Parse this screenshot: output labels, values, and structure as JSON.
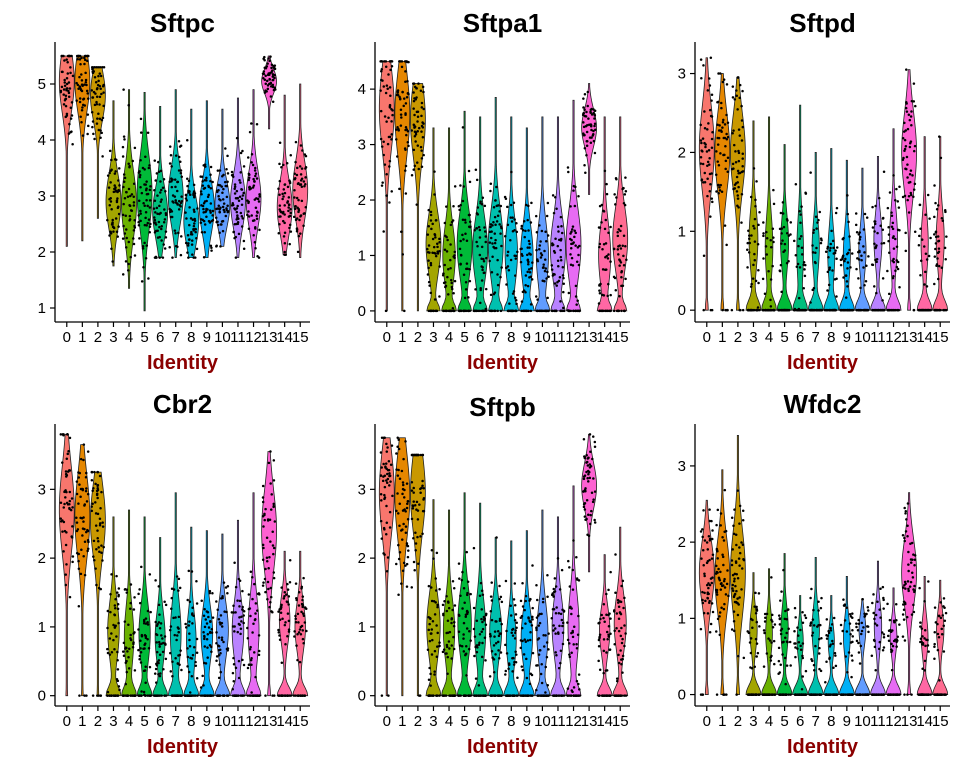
{
  "chart_data": [
    {
      "type": "violin",
      "title": "Sftpc",
      "xlabel": "Identity",
      "categories": [
        "0",
        "1",
        "2",
        "3",
        "4",
        "5",
        "6",
        "7",
        "8",
        "9",
        "10",
        "11",
        "12",
        "13",
        "14",
        "15"
      ],
      "yticks": [
        1,
        2,
        3,
        4,
        5
      ],
      "ylim": [
        0.75,
        5.75
      ],
      "series": [
        {
          "category": "0",
          "median": 5.05,
          "min": 2.1,
          "max": 5.5,
          "zero_frac": 0
        },
        {
          "category": "1",
          "median": 5.05,
          "min": 2.2,
          "max": 5.5,
          "zero_frac": 0
        },
        {
          "category": "2",
          "median": 4.8,
          "min": 2.6,
          "max": 5.3,
          "zero_frac": 0
        },
        {
          "category": "3",
          "median": 2.9,
          "min": 1.75,
          "max": 4.7,
          "zero_frac": 0
        },
        {
          "category": "4",
          "median": 2.85,
          "min": 1.35,
          "max": 4.9,
          "zero_frac": 0
        },
        {
          "category": "5",
          "median": 3.05,
          "min": 0.95,
          "max": 4.85,
          "zero_frac": 0
        },
        {
          "category": "6",
          "median": 2.7,
          "min": 1.9,
          "max": 4.6,
          "zero_frac": 0
        },
        {
          "category": "7",
          "median": 3.0,
          "min": 1.9,
          "max": 4.9,
          "zero_frac": 0
        },
        {
          "category": "8",
          "median": 2.55,
          "min": 1.9,
          "max": 4.55,
          "zero_frac": 0
        },
        {
          "category": "9",
          "median": 2.8,
          "min": 1.9,
          "max": 4.7,
          "zero_frac": 0
        },
        {
          "category": "10",
          "median": 2.85,
          "min": 2.1,
          "max": 4.55,
          "zero_frac": 0
        },
        {
          "category": "11",
          "median": 2.9,
          "min": 1.9,
          "max": 4.75,
          "zero_frac": 0
        },
        {
          "category": "12",
          "median": 2.95,
          "min": 1.9,
          "max": 4.9,
          "zero_frac": 0
        },
        {
          "category": "13",
          "median": 5.05,
          "min": 4.2,
          "max": 5.5,
          "zero_frac": 0
        },
        {
          "category": "14",
          "median": 2.8,
          "min": 1.95,
          "max": 4.8,
          "zero_frac": 0
        },
        {
          "category": "15",
          "median": 3.1,
          "min": 1.9,
          "max": 5.0,
          "zero_frac": 0
        }
      ]
    },
    {
      "type": "violin",
      "title": "Sftpa1",
      "xlabel": "Identity",
      "categories": [
        "0",
        "1",
        "2",
        "3",
        "4",
        "5",
        "6",
        "7",
        "8",
        "9",
        "10",
        "11",
        "12",
        "13",
        "14",
        "15"
      ],
      "yticks": [
        0,
        1,
        2,
        3,
        4
      ],
      "ylim": [
        -0.2,
        4.85
      ],
      "series": [
        {
          "category": "0",
          "median": 3.65,
          "min": 0,
          "max": 4.5,
          "zero_frac": 0.01
        },
        {
          "category": "1",
          "median": 3.55,
          "min": 0,
          "max": 4.5,
          "zero_frac": 0.01
        },
        {
          "category": "2",
          "median": 3.45,
          "min": 0,
          "max": 4.1,
          "zero_frac": 0.01
        },
        {
          "category": "3",
          "median": 1.2,
          "min": 0,
          "max": 3.3,
          "zero_frac": 0.2
        },
        {
          "category": "4",
          "median": 1.0,
          "min": 0,
          "max": 3.3,
          "zero_frac": 0.25
        },
        {
          "category": "5",
          "median": 1.2,
          "min": 0,
          "max": 3.6,
          "zero_frac": 0.2
        },
        {
          "category": "6",
          "median": 1.1,
          "min": 0,
          "max": 3.5,
          "zero_frac": 0.2
        },
        {
          "category": "7",
          "median": 1.2,
          "min": 0,
          "max": 3.85,
          "zero_frac": 0.2
        },
        {
          "category": "8",
          "median": 1.05,
          "min": 0,
          "max": 3.5,
          "zero_frac": 0.25
        },
        {
          "category": "9",
          "median": 1.0,
          "min": 0,
          "max": 3.3,
          "zero_frac": 0.25
        },
        {
          "category": "10",
          "median": 1.0,
          "min": 0,
          "max": 3.5,
          "zero_frac": 0.25
        },
        {
          "category": "11",
          "median": 1.1,
          "min": 0,
          "max": 3.5,
          "zero_frac": 0.2
        },
        {
          "category": "12",
          "median": 1.2,
          "min": 0,
          "max": 3.8,
          "zero_frac": 0.2
        },
        {
          "category": "13",
          "median": 3.3,
          "min": 2.1,
          "max": 4.1,
          "zero_frac": 0
        },
        {
          "category": "14",
          "median": 1.0,
          "min": 0,
          "max": 3.5,
          "zero_frac": 0.25
        },
        {
          "category": "15",
          "median": 1.3,
          "min": 0,
          "max": 3.5,
          "zero_frac": 0.2
        }
      ]
    },
    {
      "type": "violin",
      "title": "Sftpd",
      "xlabel": "Identity",
      "categories": [
        "0",
        "1",
        "2",
        "3",
        "4",
        "5",
        "6",
        "7",
        "8",
        "9",
        "10",
        "11",
        "12",
        "13",
        "14",
        "15"
      ],
      "yticks": [
        0,
        1,
        2,
        3
      ],
      "ylim": [
        -0.15,
        3.4
      ],
      "series": [
        {
          "category": "0",
          "median": 2.05,
          "min": 0,
          "max": 3.2,
          "zero_frac": 0.05
        },
        {
          "category": "1",
          "median": 2.0,
          "min": 0,
          "max": 3.0,
          "zero_frac": 0.05
        },
        {
          "category": "2",
          "median": 2.0,
          "min": 0,
          "max": 2.95,
          "zero_frac": 0.05
        },
        {
          "category": "3",
          "median": 0.9,
          "min": 0,
          "max": 2.4,
          "zero_frac": 0.4
        },
        {
          "category": "4",
          "median": 0.8,
          "min": 0,
          "max": 2.45,
          "zero_frac": 0.45
        },
        {
          "category": "5",
          "median": 0.85,
          "min": 0,
          "max": 2.1,
          "zero_frac": 0.45
        },
        {
          "category": "6",
          "median": 0.75,
          "min": 0,
          "max": 2.6,
          "zero_frac": 0.5
        },
        {
          "category": "7",
          "median": 0.8,
          "min": 0,
          "max": 2.0,
          "zero_frac": 0.5
        },
        {
          "category": "8",
          "median": 0.7,
          "min": 0,
          "max": 2.05,
          "zero_frac": 0.5
        },
        {
          "category": "9",
          "median": 0.7,
          "min": 0,
          "max": 1.9,
          "zero_frac": 0.5
        },
        {
          "category": "10",
          "median": 0.75,
          "min": 0,
          "max": 1.8,
          "zero_frac": 0.5
        },
        {
          "category": "11",
          "median": 0.9,
          "min": 0,
          "max": 1.95,
          "zero_frac": 0.45
        },
        {
          "category": "12",
          "median": 0.9,
          "min": 0,
          "max": 2.3,
          "zero_frac": 0.45
        },
        {
          "category": "13",
          "median": 2.0,
          "min": 0,
          "max": 3.05,
          "zero_frac": 0.05
        },
        {
          "category": "14",
          "median": 0.85,
          "min": 0,
          "max": 2.2,
          "zero_frac": 0.5
        },
        {
          "category": "15",
          "median": 0.9,
          "min": 0,
          "max": 2.2,
          "zero_frac": 0.45
        }
      ]
    },
    {
      "type": "violin",
      "title": "Cbr2",
      "xlabel": "Identity",
      "categories": [
        "0",
        "1",
        "2",
        "3",
        "4",
        "5",
        "6",
        "7",
        "8",
        "9",
        "10",
        "11",
        "12",
        "13",
        "14",
        "15"
      ],
      "yticks": [
        0,
        1,
        2,
        3
      ],
      "ylim": [
        -0.15,
        3.95
      ],
      "series": [
        {
          "category": "0",
          "median": 2.7,
          "min": 0,
          "max": 3.8,
          "zero_frac": 0.03
        },
        {
          "category": "1",
          "median": 2.6,
          "min": 0,
          "max": 3.65,
          "zero_frac": 0.03
        },
        {
          "category": "2",
          "median": 2.55,
          "min": 0,
          "max": 3.25,
          "zero_frac": 0.03
        },
        {
          "category": "3",
          "median": 0.95,
          "min": 0,
          "max": 2.6,
          "zero_frac": 0.3
        },
        {
          "category": "4",
          "median": 0.85,
          "min": 0,
          "max": 2.7,
          "zero_frac": 0.35
        },
        {
          "category": "5",
          "median": 0.9,
          "min": 0,
          "max": 2.6,
          "zero_frac": 0.3
        },
        {
          "category": "6",
          "median": 0.85,
          "min": 0,
          "max": 2.3,
          "zero_frac": 0.35
        },
        {
          "category": "7",
          "median": 0.9,
          "min": 0,
          "max": 2.95,
          "zero_frac": 0.3
        },
        {
          "category": "8",
          "median": 0.8,
          "min": 0,
          "max": 2.45,
          "zero_frac": 0.35
        },
        {
          "category": "9",
          "median": 0.9,
          "min": 0,
          "max": 2.4,
          "zero_frac": 0.3
        },
        {
          "category": "10",
          "median": 0.95,
          "min": 0,
          "max": 2.35,
          "zero_frac": 0.3
        },
        {
          "category": "11",
          "median": 0.95,
          "min": 0,
          "max": 2.55,
          "zero_frac": 0.3
        },
        {
          "category": "12",
          "median": 0.95,
          "min": 0,
          "max": 2.95,
          "zero_frac": 0.3
        },
        {
          "category": "13",
          "median": 2.4,
          "min": 0,
          "max": 3.55,
          "zero_frac": 0.05
        },
        {
          "category": "14",
          "median": 1.1,
          "min": 0,
          "max": 2.1,
          "zero_frac": 0.35
        },
        {
          "category": "15",
          "median": 1.0,
          "min": 0,
          "max": 2.1,
          "zero_frac": 0.35
        }
      ]
    },
    {
      "type": "violin",
      "title": "Sftpb",
      "xlabel": "Identity",
      "categories": [
        "0",
        "1",
        "2",
        "3",
        "4",
        "5",
        "6",
        "7",
        "8",
        "9",
        "10",
        "11",
        "12",
        "13",
        "14",
        "15"
      ],
      "yticks": [
        0,
        1,
        2,
        3
      ],
      "ylim": [
        -0.15,
        3.95
      ],
      "series": [
        {
          "category": "0",
          "median": 2.95,
          "min": 0,
          "max": 3.75,
          "zero_frac": 0.02
        },
        {
          "category": "1",
          "median": 2.9,
          "min": 0,
          "max": 3.75,
          "zero_frac": 0.02
        },
        {
          "category": "2",
          "median": 2.95,
          "min": 0,
          "max": 3.5,
          "zero_frac": 0.02
        },
        {
          "category": "3",
          "median": 1.0,
          "min": 0,
          "max": 2.85,
          "zero_frac": 0.25
        },
        {
          "category": "4",
          "median": 0.95,
          "min": 0,
          "max": 2.7,
          "zero_frac": 0.3
        },
        {
          "category": "5",
          "median": 1.05,
          "min": 0,
          "max": 2.95,
          "zero_frac": 0.25
        },
        {
          "category": "6",
          "median": 0.95,
          "min": 0,
          "max": 2.8,
          "zero_frac": 0.3
        },
        {
          "category": "7",
          "median": 0.95,
          "min": 0,
          "max": 2.3,
          "zero_frac": 0.3
        },
        {
          "category": "8",
          "median": 0.8,
          "min": 0,
          "max": 2.25,
          "zero_frac": 0.35
        },
        {
          "category": "9",
          "median": 0.85,
          "min": 0,
          "max": 2.4,
          "zero_frac": 0.3
        },
        {
          "category": "10",
          "median": 0.9,
          "min": 0,
          "max": 2.7,
          "zero_frac": 0.3
        },
        {
          "category": "11",
          "median": 1.0,
          "min": 0,
          "max": 2.6,
          "zero_frac": 0.3
        },
        {
          "category": "12",
          "median": 1.0,
          "min": 0,
          "max": 3.05,
          "zero_frac": 0.3
        },
        {
          "category": "13",
          "median": 3.05,
          "min": 1.8,
          "max": 3.8,
          "zero_frac": 0
        },
        {
          "category": "14",
          "median": 0.95,
          "min": 0,
          "max": 2.05,
          "zero_frac": 0.35
        },
        {
          "category": "15",
          "median": 1.05,
          "min": 0,
          "max": 2.45,
          "zero_frac": 0.3
        }
      ]
    },
    {
      "type": "violin",
      "title": "Wfdc2",
      "xlabel": "Identity",
      "categories": [
        "0",
        "1",
        "2",
        "3",
        "4",
        "5",
        "6",
        "7",
        "8",
        "9",
        "10",
        "11",
        "12",
        "13",
        "14",
        "15"
      ],
      "yticks": [
        0,
        1,
        2,
        3
      ],
      "ylim": [
        -0.15,
        3.55
      ],
      "series": [
        {
          "category": "0",
          "median": 1.6,
          "min": 0,
          "max": 2.55,
          "zero_frac": 0.05
        },
        {
          "category": "1",
          "median": 1.55,
          "min": 0,
          "max": 2.95,
          "zero_frac": 0.05
        },
        {
          "category": "2",
          "median": 1.6,
          "min": 0,
          "max": 3.4,
          "zero_frac": 0.05
        },
        {
          "category": "3",
          "median": 0.85,
          "min": 0,
          "max": 1.6,
          "zero_frac": 0.5
        },
        {
          "category": "4",
          "median": 0.8,
          "min": 0,
          "max": 1.65,
          "zero_frac": 0.55
        },
        {
          "category": "5",
          "median": 0.85,
          "min": 0,
          "max": 1.85,
          "zero_frac": 0.5
        },
        {
          "category": "6",
          "median": 0.7,
          "min": 0,
          "max": 1.3,
          "zero_frac": 0.6
        },
        {
          "category": "7",
          "median": 0.85,
          "min": 0,
          "max": 1.8,
          "zero_frac": 0.5
        },
        {
          "category": "8",
          "median": 0.7,
          "min": 0,
          "max": 1.3,
          "zero_frac": 0.6
        },
        {
          "category": "9",
          "median": 0.75,
          "min": 0,
          "max": 1.55,
          "zero_frac": 0.55
        },
        {
          "category": "10",
          "median": 0.85,
          "min": 0,
          "max": 1.25,
          "zero_frac": 0.55
        },
        {
          "category": "11",
          "median": 0.9,
          "min": 0,
          "max": 1.75,
          "zero_frac": 0.5
        },
        {
          "category": "12",
          "median": 0.75,
          "min": 0,
          "max": 1.4,
          "zero_frac": 0.55
        },
        {
          "category": "13",
          "median": 1.6,
          "min": 0,
          "max": 2.65,
          "zero_frac": 0.05
        },
        {
          "category": "14",
          "median": 0.75,
          "min": 0,
          "max": 1.55,
          "zero_frac": 0.55
        },
        {
          "category": "15",
          "median": 0.85,
          "min": 0,
          "max": 1.5,
          "zero_frac": 0.5
        }
      ]
    }
  ],
  "palette": [
    "#F8766D",
    "#E58700",
    "#C99800",
    "#A3A500",
    "#6BB100",
    "#00BA38",
    "#00BF7D",
    "#00C0AF",
    "#00BCD8",
    "#00B0F6",
    "#619CFF",
    "#B983FF",
    "#E76BF3",
    "#FD61D1",
    "#FF67A4",
    "#FF6C91"
  ],
  "colors": {
    "xlabel": "#8B0000",
    "points": "#000000"
  }
}
